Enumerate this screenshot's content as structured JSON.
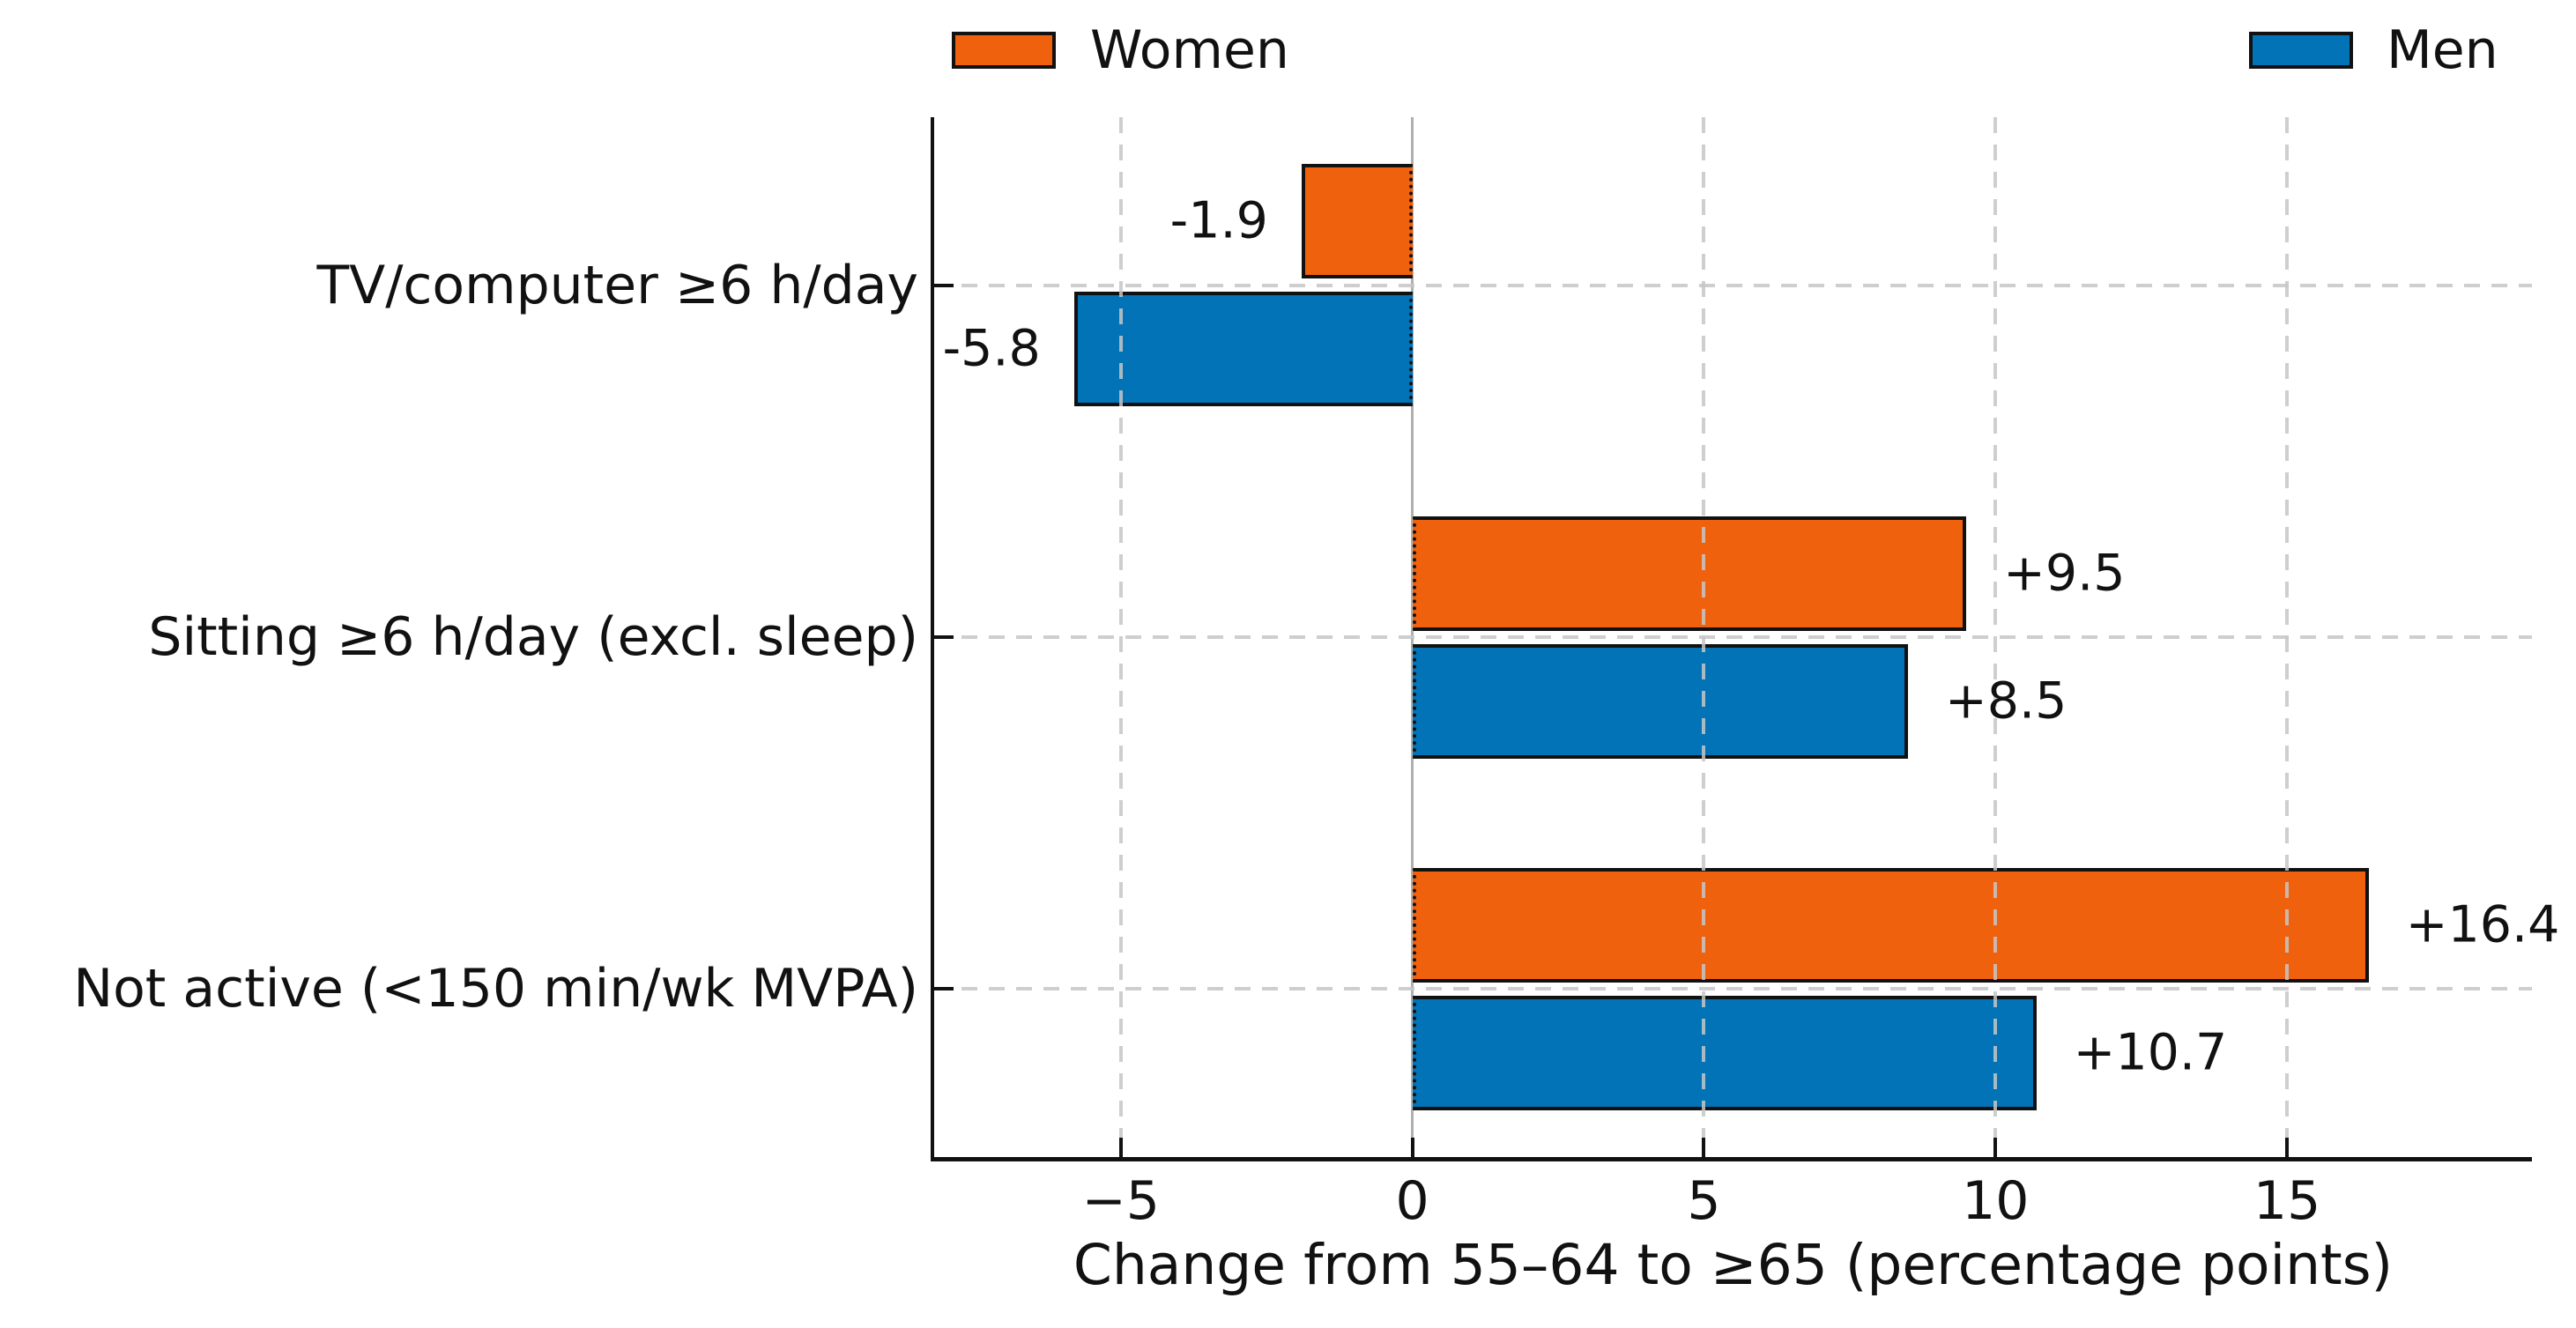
{
  "chart_data": {
    "type": "bar",
    "orientation": "horizontal",
    "categories": [
      "TV/computer ≥6 h/day",
      "Sitting ≥6 h/day (excl. sleep)",
      "Not active (<150 min/wk MVPA)"
    ],
    "series": [
      {
        "name": "Women",
        "color": "#F0610E",
        "values": [
          -1.9,
          9.5,
          16.4
        ],
        "bar_labels": [
          "-1.9",
          "+9.5",
          "+16.4"
        ]
      },
      {
        "name": "Men",
        "color": "#0173B6",
        "values": [
          -5.8,
          8.5,
          10.7
        ],
        "bar_labels": [
          "-5.8",
          "+8.5",
          "+10.7"
        ]
      }
    ],
    "xlabel": "Change from 55–64 to ≥65 (percentage points)",
    "xticks": [
      -5,
      0,
      5,
      10,
      15
    ],
    "xtick_labels": [
      "−5",
      "0",
      "5",
      "10",
      "15"
    ],
    "xlim": [
      -8.2,
      19.2
    ],
    "grid": "dashed, both axes, drawn over bars",
    "zero_line": true,
    "legend_position": "top (Women left-center, Men far right)",
    "bar_edge_color": "#111111",
    "zero_line_color": "#b0b0b0",
    "grid_color": "#c6c6c6",
    "text_color": "#111111",
    "background": "#ffffff"
  },
  "legend": {
    "items": [
      {
        "label": "Women",
        "color": "#F0610E"
      },
      {
        "label": "Men",
        "color": "#0173B6"
      }
    ]
  }
}
